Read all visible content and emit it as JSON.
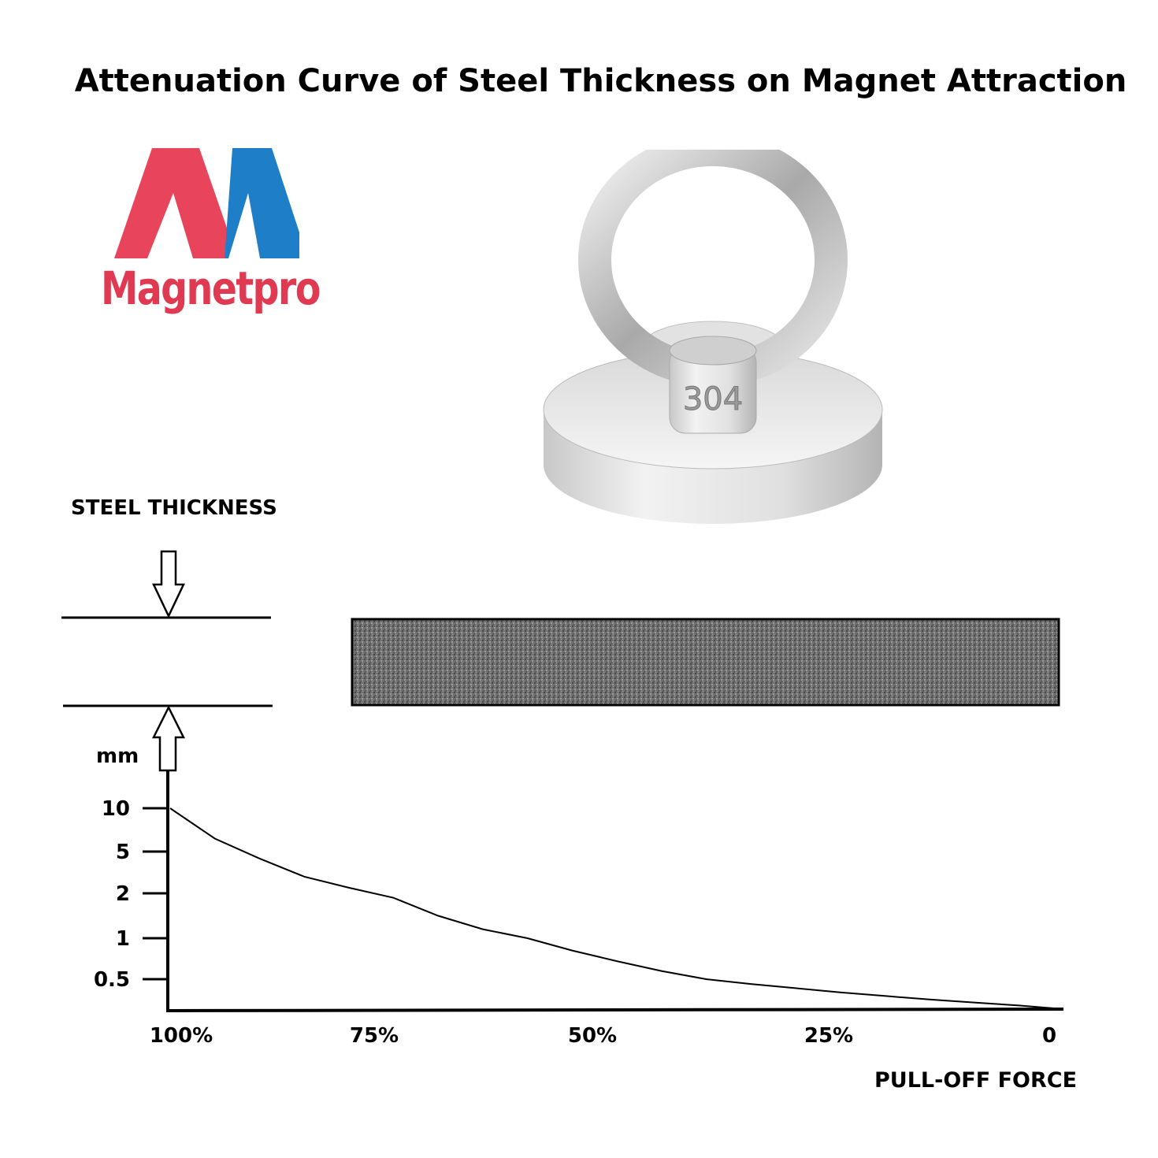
{
  "title": "Attenuation Curve of Steel Thickness on Magnet Attraction",
  "logo": {
    "text": "Magnetpro",
    "colors": {
      "left": "#e8455c",
      "right": "#1e7fc8",
      "text": "#e03a52"
    }
  },
  "product": {
    "engraving": "304",
    "icon": "eye-bolt-pot-magnet"
  },
  "steel_label": "STEEL THICKNESS",
  "chart_data": {
    "type": "line",
    "title": "Attenuation Curve of Steel Thickness on Magnet Attraction",
    "ylabel": "mm",
    "xlabel": "PULL-OFF FORCE",
    "y_ticks": [
      "10",
      "5",
      "2",
      "1",
      "0.5"
    ],
    "x_ticks": [
      "100%",
      "75%",
      "50%",
      "25%",
      "0"
    ],
    "series": [
      {
        "x": [
          100,
          95,
          90,
          85,
          80,
          75,
          70,
          65,
          60,
          55,
          50,
          45,
          40,
          35,
          30,
          25,
          20,
          15,
          10,
          5,
          0
        ],
        "y": [
          10,
          6.5,
          4.5,
          3.2,
          2.4,
          1.9,
          1.5,
          1.2,
          1.0,
          0.85,
          0.72,
          0.6,
          0.5,
          0.42,
          0.35,
          0.28,
          0.22,
          0.16,
          0.11,
          0.06,
          0.0
        ]
      }
    ],
    "grid": false,
    "legend": "none"
  }
}
